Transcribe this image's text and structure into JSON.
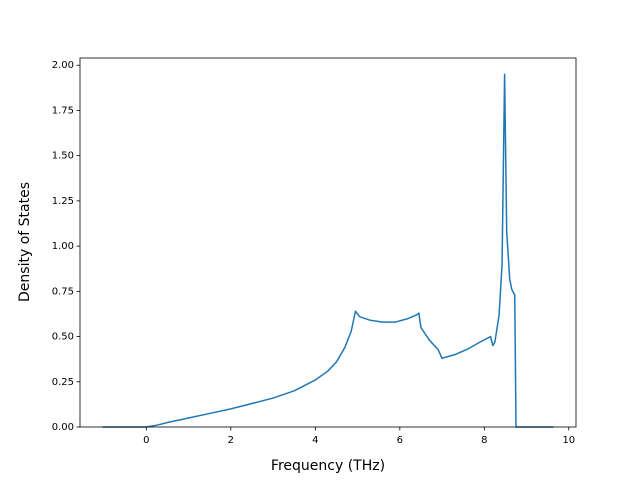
{
  "chart_data": {
    "type": "line",
    "x_label": "Frequency (THz)",
    "y_label": "Density of States",
    "color": "#1f77b4",
    "x": [
      -1.04,
      -0.5,
      0,
      0.25,
      0.5,
      1,
      1.5,
      2,
      2.5,
      3,
      3.5,
      4,
      4.3,
      4.5,
      4.7,
      4.85,
      4.95,
      5.05,
      5.3,
      5.6,
      5.9,
      6.2,
      6.4,
      6.45,
      6.5,
      6.7,
      6.9,
      7.0,
      7.3,
      7.6,
      7.9,
      8.15,
      8.2,
      8.25,
      8.35,
      8.42,
      8.48,
      8.53,
      8.6,
      8.65,
      8.72,
      8.75,
      9.64
    ],
    "values": [
      0,
      0,
      0,
      0.01,
      0.025,
      0.05,
      0.075,
      0.1,
      0.13,
      0.16,
      0.2,
      0.26,
      0.31,
      0.36,
      0.44,
      0.53,
      0.64,
      0.61,
      0.59,
      0.58,
      0.58,
      0.6,
      0.62,
      0.63,
      0.55,
      0.48,
      0.43,
      0.38,
      0.4,
      0.43,
      0.47,
      0.5,
      0.45,
      0.47,
      0.62,
      0.9,
      1.95,
      1.08,
      0.82,
      0.76,
      0.73,
      0,
      0
    ],
    "xlim": [
      -1.57,
      10.17
    ],
    "ylim": [
      0,
      2.04
    ],
    "xticks": [
      0,
      2,
      4,
      6,
      8,
      10
    ],
    "yticks": [
      {
        "value": 0,
        "label": "0.00"
      },
      {
        "value": 0.25,
        "label": "0.25"
      },
      {
        "value": 0.5,
        "label": "0.50"
      },
      {
        "value": 0.75,
        "label": "0.75"
      },
      {
        "value": 1.0,
        "label": "1.00"
      },
      {
        "value": 1.25,
        "label": "1.25"
      },
      {
        "value": 1.5,
        "label": "1.50"
      },
      {
        "value": 1.75,
        "label": "1.75"
      },
      {
        "value": 2.0,
        "label": "2.00"
      }
    ]
  }
}
